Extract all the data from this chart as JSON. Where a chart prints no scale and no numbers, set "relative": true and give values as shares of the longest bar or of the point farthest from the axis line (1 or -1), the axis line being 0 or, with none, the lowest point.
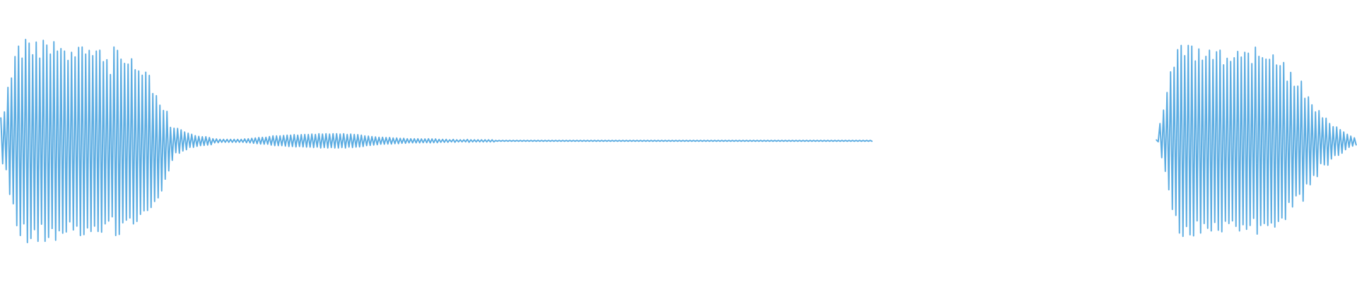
{
  "chart_data": {
    "type": "line",
    "relative": true,
    "categories": [
      null,
      null,
      null,
      null,
      null,
      null,
      null,
      null,
      null,
      null,
      null,
      null,
      null,
      null,
      null,
      null,
      null,
      null,
      null,
      null,
      null,
      null,
      null,
      null,
      null,
      null,
      null,
      null,
      null,
      null,
      null,
      null,
      null,
      null,
      null,
      null,
      null,
      null,
      null,
      null,
      null,
      null,
      null,
      null,
      null,
      null,
      null,
      null,
      null,
      null,
      null,
      null,
      null,
      null,
      null,
      null,
      null,
      null,
      null,
      null,
      null,
      null,
      null,
      null,
      null,
      null,
      null,
      null,
      null,
      null,
      null,
      null,
      null,
      null,
      null,
      null,
      null,
      null,
      null,
      null,
      null,
      null,
      null,
      null,
      null,
      null,
      null,
      null,
      null,
      null,
      null,
      null,
      null,
      null,
      null,
      null,
      null,
      null,
      null,
      null,
      null,
      null,
      null,
      null,
      null,
      null,
      null,
      null,
      null,
      null,
      null,
      null,
      null,
      null,
      null,
      null,
      null,
      null,
      null,
      null,
      null,
      null,
      null,
      null,
      null,
      null,
      null,
      null,
      null,
      null,
      null,
      null,
      null,
      null,
      null,
      null,
      null,
      null,
      null,
      null,
      null,
      null,
      null,
      null,
      null,
      null,
      null,
      null,
      null,
      null,
      null,
      null,
      null,
      null,
      null,
      null,
      null,
      null,
      null,
      null,
      null,
      null,
      null,
      null,
      null,
      null,
      null,
      null,
      null,
      null,
      null,
      null,
      null,
      null,
      null,
      null,
      null,
      null,
      null,
      null,
      null,
      null,
      null,
      null,
      null,
      null,
      null,
      null,
      null,
      null,
      null,
      null,
      null,
      null,
      null,
      null,
      null,
      null,
      null,
      null,
      null,
      null,
      null,
      null,
      null,
      null,
      null,
      null,
      null,
      null,
      null,
      null,
      null,
      null,
      null,
      null,
      null,
      null,
      null,
      null,
      null,
      null,
      null,
      null,
      null,
      null,
      null,
      null,
      null,
      null,
      null,
      null,
      null,
      null,
      null,
      null,
      null,
      null,
      null,
      null,
      null,
      null,
      null,
      null,
      null,
      null,
      null,
      null,
      null,
      null,
      null,
      null,
      null,
      null,
      null,
      null,
      null,
      null,
      null,
      null,
      null,
      null,
      null,
      null,
      null,
      null,
      null,
      null,
      null,
      null,
      null,
      null,
      null,
      null,
      null,
      null,
      null,
      null,
      null,
      null,
      null,
      null,
      null,
      null,
      null,
      null,
      null,
      null,
      null,
      null,
      null,
      null,
      null,
      null,
      null,
      null,
      null,
      null,
      null,
      null,
      null,
      null,
      null,
      null,
      null,
      null,
      null,
      null,
      null,
      null,
      null,
      null,
      null,
      null,
      null,
      null,
      null,
      null,
      null,
      null,
      null,
      null,
      null,
      null,
      null,
      null,
      null,
      null,
      null,
      null,
      null,
      null,
      null,
      null,
      null,
      null,
      null,
      null,
      null,
      null,
      null,
      null,
      null,
      null,
      null,
      null,
      null,
      null,
      null,
      null,
      null,
      null,
      null,
      null,
      null,
      null,
      null,
      null,
      null,
      null,
      null,
      null,
      null,
      null,
      null,
      null,
      null,
      null,
      null,
      null,
      null,
      null,
      null,
      null,
      null,
      null,
      null,
      null,
      null,
      null,
      null,
      null,
      null,
      null,
      null,
      null,
      null,
      null,
      null,
      null,
      null,
      null,
      null,
      null,
      null,
      null,
      null,
      null,
      null,
      null,
      null,
      null,
      null,
      null,
      null,
      null,
      null,
      null,
      null,
      null,
      null,
      null,
      null,
      null,
      null,
      null,
      null,
      null,
      null,
      null,
      null,
      null,
      null,
      null,
      null,
      null,
      null,
      null,
      null,
      null,
      null,
      null,
      null,
      null,
      null,
      null,
      null,
      null,
      null,
      null,
      null,
      null,
      null,
      null,
      null,
      null,
      null,
      null,
      null,
      null,
      null,
      null,
      null,
      null,
      null,
      null,
      null,
      null,
      null,
      null,
      null,
      null,
      null,
      null,
      null,
      null,
      null,
      null,
      null,
      null,
      null,
      null,
      null,
      null,
      null,
      null,
      null,
      null,
      null,
      null,
      null,
      null,
      null,
      null,
      null,
      null,
      null,
      null,
      null,
      null,
      null,
      null,
      null,
      null,
      null,
      null,
      null,
      null,
      null,
      null,
      null,
      null,
      null,
      null,
      null,
      null,
      null,
      null,
      null,
      null,
      null,
      null,
      null,
      null,
      null,
      null,
      null,
      null,
      null,
      null,
      null,
      null,
      null,
      null,
      null,
      null,
      null,
      null,
      null,
      null,
      null,
      null,
      null,
      null,
      null,
      null,
      null,
      null,
      null,
      null,
      null,
      null,
      null,
      null,
      null,
      null,
      null,
      null,
      null,
      null,
      null,
      null,
      null,
      null,
      null,
      null,
      null,
      null,
      null,
      null,
      null,
      null,
      null,
      null,
      null,
      null,
      null,
      null,
      null,
      null,
      null,
      null,
      null,
      null,
      null,
      null,
      null,
      null,
      null,
      null,
      null,
      null,
      null,
      null,
      null,
      null,
      null,
      null,
      null,
      null,
      null,
      null,
      null,
      null,
      null,
      null,
      null,
      null,
      null,
      null,
      null,
      null,
      null,
      null,
      null,
      null,
      null,
      null,
      null,
      null,
      null,
      null,
      null,
      null,
      null,
      null,
      null,
      null,
      null,
      null,
      null,
      null,
      null,
      null,
      null,
      null,
      null,
      null,
      null,
      null,
      null,
      null,
      null,
      null,
      null,
      null,
      null,
      null,
      null,
      null,
      null,
      null,
      null,
      null,
      null,
      null,
      null,
      null,
      null,
      null,
      null,
      null,
      null,
      null,
      null,
      null,
      null,
      null,
      null,
      null,
      null,
      null,
      null,
      null,
      null,
      null,
      null,
      null,
      null,
      null,
      null,
      null,
      null,
      null,
      null,
      null,
      null,
      null,
      null,
      null,
      null,
      null,
      null,
      null,
      null,
      null,
      null,
      null,
      null,
      null,
      null,
      null,
      null,
      null,
      null,
      null,
      null,
      null,
      null,
      null,
      null,
      null,
      null,
      null,
      null,
      null,
      null,
      null,
      null,
      null,
      null,
      null,
      null,
      null,
      null,
      null,
      null,
      null,
      null,
      null,
      null,
      null,
      null,
      null,
      null,
      null,
      null,
      null,
      null,
      null,
      null,
      null,
      null,
      null,
      null,
      null,
      null,
      null,
      null,
      null,
      null,
      null,
      null,
      null,
      null,
      null,
      null,
      null,
      null,
      null,
      null,
      null,
      null,
      null,
      null,
      null,
      null,
      null,
      null,
      null,
      null,
      null,
      null,
      null,
      null,
      null,
      null,
      null
    ],
    "series": [
      {
        "color": "#5dade2",
        "values": [
          0.614,
          0.388,
          0.643,
          0.359,
          0.764,
          0.237,
          0.81,
          0.191,
          0.916,
          0.083,
          0.967,
          0.035,
          0.908,
          0.092,
          1,
          0,
          0.982,
          0.02,
          0.925,
          0.063,
          0.987,
          0.006,
          0.908,
          0.09,
          0.996,
          0.006,
          0.972,
          0.025,
          0.928,
          0.069,
          0.989,
          0.011,
          0.943,
          0.058,
          0.955,
          0.046,
          0.943,
          0.052,
          0.897,
          0.102,
          0.937,
          0.062,
          0.914,
          0.081,
          0.961,
          0.035,
          0.963,
          0.039,
          0.928,
          0.072,
          0.946,
          0.055,
          0.92,
          0.081,
          0.943,
          0.055,
          0.947,
          0.051,
          0.891,
          0.092,
          0.9,
          0.106,
          0.827,
          0.127,
          0.963,
          0.035,
          0.946,
          0.04,
          0.903,
          0.097,
          0.882,
          0.11,
          0.879,
          0.121,
          0.905,
          0.092,
          0.851,
          0.104,
          0.845,
          0.139,
          0.824,
          0.156,
          0.839,
          0.158,
          0.823,
          0.173,
          0.734,
          0.202,
          0.723,
          0.22,
          0.676,
          0.254,
          0.65,
          0.312,
          0.646,
          0.353,
          0.567,
          0.405,
          0.563,
          0.443,
          0.562,
          0.44,
          0.555,
          0.451,
          0.544,
          0.457,
          0.538,
          0.469,
          0.533,
          0.469,
          0.526,
          0.474,
          0.523,
          0.477,
          0.521,
          0.478,
          0.521,
          0.48,
          0.517,
          0.482,
          0.511,
          0.491,
          0.51,
          0.492,
          0.508,
          0.494,
          0.508,
          0.494,
          0.508,
          0.494,
          0.508,
          0.494,
          0.508,
          0.494,
          0.508,
          0.494,
          0.508,
          0.494,
          0.51,
          0.492,
          0.511,
          0.491,
          0.513,
          0.489,
          0.515,
          0.487,
          0.517,
          0.485,
          0.518,
          0.484,
          0.518,
          0.484,
          0.522,
          0.48,
          0.525,
          0.477,
          0.525,
          0.477,
          0.525,
          0.477,
          0.527,
          0.475,
          0.529,
          0.473,
          0.529,
          0.473,
          0.531,
          0.471,
          0.529,
          0.473,
          0.531,
          0.471,
          0.532,
          0.47,
          0.532,
          0.47,
          0.534,
          0.468,
          0.532,
          0.47,
          0.536,
          0.466,
          0.534,
          0.468,
          0.536,
          0.466,
          0.534,
          0.468,
          0.536,
          0.466,
          0.536,
          0.466,
          0.534,
          0.468,
          0.536,
          0.466,
          0.532,
          0.47,
          0.534,
          0.468,
          0.532,
          0.47,
          0.531,
          0.471,
          0.529,
          0.473,
          0.525,
          0.477,
          0.524,
          0.478,
          0.522,
          0.48,
          0.52,
          0.482,
          0.518,
          0.484,
          0.518,
          0.484,
          0.517,
          0.485,
          0.517,
          0.485,
          0.515,
          0.487,
          0.515,
          0.487,
          0.513,
          0.489,
          0.513,
          0.489,
          0.511,
          0.491,
          0.511,
          0.491,
          0.511,
          0.491,
          0.511,
          0.491,
          0.51,
          0.492,
          0.51,
          0.492,
          0.511,
          0.491,
          0.51,
          0.492,
          0.51,
          0.492,
          0.508,
          0.494,
          0.508,
          0.494,
          0.508,
          0.494,
          0.506,
          0.496,
          0.508,
          0.494,
          0.506,
          0.496,
          0.506,
          0.496,
          0.506,
          0.496,
          0.508,
          0.494,
          0.506,
          0.496,
          0.506,
          0.496,
          0.506,
          0.496,
          0.506,
          0.496,
          0.506,
          0.496,
          0.506,
          0.496,
          0.506,
          0.496,
          0.503,
          0.499,
          0.503,
          0.499,
          0.503,
          0.499,
          0.503,
          0.499,
          0.503,
          0.499,
          0.503,
          0.499,
          0.503,
          0.499,
          0.503,
          0.499,
          0.503,
          0.499,
          0.503,
          0.499,
          0.503,
          0.499,
          0.503,
          0.499,
          0.503,
          0.499,
          0.503,
          0.499,
          0.503,
          0.499,
          0.503,
          0.499,
          0.503,
          0.499,
          0.503,
          0.499,
          0.503,
          0.499,
          0.503,
          0.499,
          0.503,
          0.499,
          0.503,
          0.499,
          0.503,
          0.499,
          0.503,
          0.499,
          0.503,
          0.499,
          0.503,
          0.499,
          0.503,
          0.499,
          0.503,
          0.499,
          0.503,
          0.499,
          0.503,
          0.499,
          0.503,
          0.499,
          0.503,
          0.499,
          0.503,
          0.499,
          0.503,
          0.499,
          0.503,
          0.499,
          0.503,
          0.499,
          0.503,
          0.499,
          0.503,
          0.499,
          0.503,
          0.499,
          0.503,
          0.499,
          0.503,
          0.499,
          0.503,
          0.499,
          0.503,
          0.499,
          0.503,
          0.499,
          0.503,
          0.499,
          0.503,
          0.499,
          0.503,
          0.499,
          0.503,
          0.499,
          0.503,
          0.499,
          0.503,
          0.499,
          0.503,
          0.499,
          0.503,
          0.499,
          0.503,
          0.499,
          0.503,
          0.499,
          0.503,
          0.499,
          0.503,
          0.499,
          0.503,
          0.499,
          0.503,
          0.499,
          0.503,
          0.499,
          0.503,
          0.499,
          0.503,
          0.499,
          0.503,
          0.499,
          0.503,
          0.499,
          0.503,
          0.499,
          0.503,
          0.499,
          0.503,
          0.499,
          0.503,
          0.499,
          0.503,
          0.499,
          0.503,
          0.499,
          0.503,
          0.499,
          0.503,
          0.499,
          0.503,
          0.499,
          0.503,
          0.499,
          0.503,
          0.499,
          0.503,
          0.499,
          0.503,
          0.499,
          0.503,
          0.499,
          0.503,
          0.499,
          0.503,
          0.499,
          0.503,
          0.499,
          0.503,
          0.499,
          0.503,
          0.499,
          0.503,
          0.499,
          0.503,
          0.499,
          0.503,
          0.499,
          0.503,
          0.499,
          0.503,
          0.499,
          0.503,
          0.499,
          0.503,
          0.499,
          0.503,
          0.499,
          0.503,
          0.499,
          0.503,
          0.499,
          0.503,
          0.499,
          0.503,
          0.499,
          0.503,
          0.499,
          0.503,
          0.499,
          0.503,
          0.499,
          0.503,
          0.499,
          0.503,
          0.499,
          0.503,
          0.499,
          0.503,
          0.499,
          0.503,
          0.499,
          0.503,
          0.499,
          0.503,
          0.499,
          0.503,
          0.499,
          0.503,
          0.499,
          0.503,
          0.499,
          null,
          null,
          null,
          null,
          null,
          null,
          null,
          null,
          null,
          null,
          null,
          null,
          null,
          null,
          null,
          null,
          null,
          null,
          null,
          null,
          null,
          null,
          null,
          null,
          null,
          null,
          null,
          null,
          null,
          null,
          null,
          null,
          null,
          null,
          null,
          null,
          null,
          null,
          null,
          null,
          null,
          null,
          null,
          null,
          null,
          null,
          null,
          null,
          null,
          null,
          null,
          null,
          null,
          null,
          null,
          null,
          null,
          null,
          null,
          null,
          null,
          null,
          null,
          null,
          null,
          null,
          null,
          null,
          null,
          null,
          null,
          null,
          null,
          null,
          null,
          null,
          null,
          null,
          null,
          null,
          null,
          null,
          null,
          null,
          null,
          null,
          null,
          null,
          null,
          null,
          null,
          null,
          null,
          null,
          null,
          null,
          null,
          null,
          null,
          null,
          null,
          null,
          null,
          null,
          null,
          null,
          null,
          null,
          null,
          null,
          null,
          null,
          null,
          null,
          null,
          null,
          null,
          null,
          null,
          null,
          null,
          null,
          null,
          null,
          null,
          null,
          null,
          null,
          null,
          null,
          null,
          null,
          null,
          null,
          null,
          null,
          null,
          null,
          null,
          null,
          null,
          null,
          null,
          null,
          null,
          null,
          null,
          null,
          null,
          null,
          null,
          null,
          null,
          null,
          null,
          null,
          null,
          null,
          null,
          null,
          null,
          null,
          null,
          null,
          null,
          null,
          null,
          null,
          null,
          null,
          null,
          null,
          null,
          null,
          null,
          null,
          null,
          null,
          null,
          null,
          null,
          null,
          null,
          null,
          null,
          null,
          null,
          null,
          null,
          null,
          null,
          null,
          null,
          null,
          null,
          null,
          null,
          null,
          null,
          null,
          null,
          null,
          null,
          null,
          null,
          null,
          null,
          null,
          null,
          null,
          null,
          null,
          null,
          null,
          null,
          null,
          null,
          null,
          null,
          null,
          null,
          null,
          null,
          null,
          null,
          null,
          null,
          null,
          null,
          null,
          null,
          null,
          null,
          null,
          null,
          null,
          null,
          null,
          null,
          null,
          null,
          null,
          null,
          null,
          null,
          null,
          null,
          null,
          null,
          null,
          null,
          null,
          null,
          null,
          null,
          null,
          null,
          null,
          null,
          null,
          null,
          null,
          null,
          null,
          null,
          null,
          null,
          null,
          null,
          null,
          null,
          null,
          null,
          null
        ]
      },
      {
        "color": "#5dade2",
        "values": [
          null,
          null,
          null,
          null,
          null,
          null,
          null,
          null,
          null,
          null,
          null,
          null,
          null,
          null,
          null,
          null,
          null,
          null,
          null,
          null,
          null,
          null,
          null,
          null,
          null,
          null,
          null,
          null,
          null,
          null,
          null,
          null,
          null,
          null,
          null,
          null,
          null,
          null,
          null,
          null,
          null,
          null,
          null,
          null,
          null,
          null,
          null,
          null,
          null,
          null,
          null,
          null,
          null,
          null,
          null,
          null,
          null,
          null,
          null,
          null,
          null,
          null,
          null,
          null,
          null,
          null,
          null,
          null,
          null,
          null,
          null,
          null,
          null,
          null,
          null,
          null,
          null,
          null,
          null,
          null,
          null,
          null,
          null,
          null,
          null,
          null,
          null,
          null,
          null,
          null,
          null,
          null,
          null,
          null,
          null,
          null,
          null,
          null,
          null,
          null,
          null,
          null,
          null,
          null,
          null,
          null,
          null,
          null,
          null,
          null,
          null,
          null,
          null,
          null,
          null,
          null,
          null,
          null,
          null,
          null,
          null,
          null,
          null,
          null,
          null,
          null,
          null,
          null,
          null,
          null,
          null,
          null,
          null,
          null,
          null,
          null,
          null,
          null,
          null,
          null,
          null,
          null,
          null,
          null,
          null,
          null,
          null,
          null,
          null,
          null,
          null,
          null,
          null,
          null,
          null,
          null,
          null,
          null,
          null,
          null,
          null,
          null,
          null,
          null,
          null,
          null,
          null,
          null,
          null,
          null,
          null,
          null,
          null,
          null,
          null,
          null,
          null,
          null,
          null,
          null,
          null,
          null,
          null,
          null,
          null,
          null,
          null,
          null,
          null,
          null,
          null,
          null,
          null,
          null,
          null,
          null,
          null,
          null,
          null,
          null,
          null,
          null,
          null,
          null,
          null,
          null,
          null,
          null,
          null,
          null,
          null,
          null,
          null,
          null,
          null,
          null,
          null,
          null,
          null,
          null,
          null,
          null,
          null,
          null,
          null,
          null,
          null,
          null,
          null,
          null,
          null,
          null,
          null,
          null,
          null,
          null,
          null,
          null,
          null,
          null,
          null,
          null,
          null,
          null,
          null,
          null,
          null,
          null,
          null,
          null,
          null,
          null,
          null,
          null,
          null,
          null,
          null,
          null,
          null,
          null,
          null,
          null,
          null,
          null,
          null,
          null,
          null,
          null,
          null,
          null,
          null,
          null,
          null,
          null,
          null,
          null,
          null,
          null,
          null,
          null,
          null,
          null,
          null,
          null,
          null,
          null,
          null,
          null,
          null,
          null,
          null,
          null,
          null,
          null,
          null,
          null,
          null,
          null,
          null,
          null,
          null,
          null,
          null,
          null,
          null,
          null,
          null,
          null,
          null,
          null,
          null,
          null,
          null,
          null,
          null,
          null,
          null,
          null,
          null,
          null,
          null,
          null,
          null,
          null,
          null,
          null,
          null,
          null,
          null,
          null,
          null,
          null,
          null,
          null,
          null,
          null,
          null,
          null,
          null,
          null,
          null,
          null,
          null,
          null,
          null,
          null,
          null,
          null,
          null,
          null,
          null,
          null,
          null,
          null,
          null,
          null,
          null,
          null,
          null,
          null,
          null,
          null,
          null,
          null,
          null,
          null,
          null,
          null,
          null,
          null,
          null,
          null,
          null,
          null,
          null,
          null,
          null,
          null,
          null,
          null,
          null,
          null,
          null,
          null,
          null,
          null,
          null,
          null,
          null,
          null,
          null,
          null,
          null,
          null,
          null,
          null,
          null,
          null,
          null,
          null,
          null,
          null,
          null,
          null,
          null,
          null,
          null,
          null,
          null,
          null,
          null,
          null,
          null,
          null,
          null,
          null,
          null,
          null,
          null,
          null,
          null,
          null,
          null,
          null,
          null,
          null,
          null,
          null,
          null,
          null,
          null,
          null,
          null,
          null,
          null,
          null,
          null,
          null,
          null,
          null,
          null,
          null,
          null,
          null,
          null,
          null,
          null,
          null,
          null,
          null,
          null,
          null,
          null,
          null,
          null,
          null,
          null,
          null,
          null,
          null,
          null,
          null,
          null,
          null,
          null,
          null,
          null,
          null,
          null,
          null,
          null,
          null,
          null,
          null,
          null,
          null,
          null,
          null,
          null,
          null,
          null,
          null,
          null,
          null,
          null,
          null,
          null,
          null,
          null,
          null,
          null,
          null,
          null,
          null,
          null,
          null,
          null,
          null,
          null,
          null,
          null,
          null,
          null,
          null,
          null,
          null,
          null,
          null,
          null,
          null,
          null,
          null,
          null,
          null,
          null,
          null,
          null,
          null,
          null,
          null,
          null,
          null,
          null,
          null,
          null,
          null,
          null,
          null,
          null,
          null,
          null,
          null,
          null,
          null,
          null,
          null,
          null,
          null,
          null,
          null,
          null,
          null,
          null,
          null,
          null,
          null,
          null,
          null,
          null,
          null,
          null,
          null,
          null,
          null,
          null,
          null,
          null,
          null,
          null,
          null,
          null,
          null,
          null,
          null,
          null,
          null,
          null,
          null,
          null,
          null,
          null,
          null,
          null,
          null,
          null,
          null,
          null,
          null,
          null,
          null,
          null,
          null,
          null,
          null,
          null,
          null,
          null,
          null,
          null,
          null,
          null,
          null,
          null,
          null,
          null,
          null,
          null,
          null,
          null,
          null,
          null,
          null,
          null,
          null,
          null,
          null,
          null,
          null,
          null,
          null,
          null,
          null,
          null,
          null,
          null,
          null,
          null,
          null,
          null,
          null,
          null,
          null,
          null,
          null,
          null,
          null,
          null,
          null,
          null,
          null,
          null,
          null,
          null,
          null,
          null,
          null,
          null,
          null,
          null,
          null,
          null,
          null,
          null,
          null,
          null,
          null,
          null,
          null,
          null,
          null,
          null,
          null,
          null,
          null,
          0.505,
          0.496,
          0.586,
          0.418,
          0.652,
          0.351,
          0.739,
          0.26,
          0.84,
          0.163,
          0.863,
          0.134,
          0.95,
          0.047,
          0.971,
          0.03,
          0.92,
          0.079,
          0.971,
          0.038,
          0.967,
          0.033,
          0.894,
          0.107,
          0.953,
          0.047,
          0.898,
          0.094,
          0.917,
          0.07,
          0.947,
          0.057,
          0.901,
          0.099,
          0.939,
          0.061,
          0.947,
          0.053,
          0.875,
          0.105,
          0.907,
          0.094,
          0.892,
          0.107,
          0.91,
          0.08,
          0.941,
          0.057,
          0.913,
          0.088,
          0.937,
          0.065,
          0.932,
          0.084,
          0.881,
          0.119,
          0.962,
          0.042,
          0.917,
          0.084,
          0.91,
          0.094,
          0.903,
          0.084,
          0.902,
          0.096,
          0.924,
          0.076,
          0.874,
          0.104,
          0.871,
          0.121,
          0.886,
          0.114,
          0.794,
          0.198,
          0.838,
          0.175,
          0.769,
          0.23,
          0.77,
          0.238,
          0.794,
          0.204,
          0.71,
          0.289,
          0.717,
          0.285,
          0.678,
          0.331,
          0.643,
          0.325,
          0.649,
          0.389,
          0.614,
          0.383,
          0.612,
          0.381,
          0.586,
          0.412,
          0.57,
          0.429,
          0.569,
          0.43,
          0.556,
          0.44,
          0.544,
          0.457,
          0.533,
          0.469,
          0.524,
          0.475,
          0.516,
          0.481
        ]
      }
    ]
  }
}
